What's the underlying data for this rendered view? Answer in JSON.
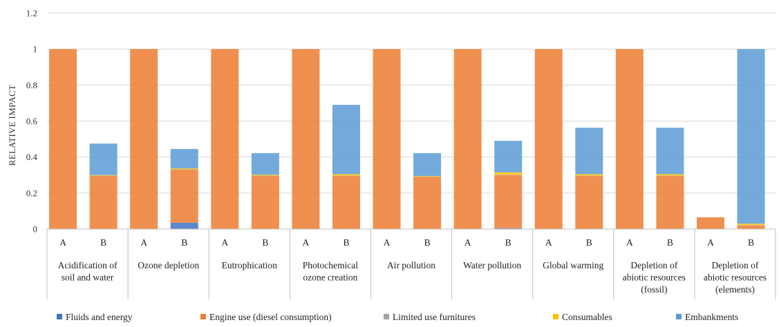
{
  "chart_data": {
    "type": "bar",
    "stacked": true,
    "title": "",
    "xlabel": "",
    "ylabel": "RELATIVE IMPACT",
    "ylim": [
      0,
      1.2
    ],
    "yticks": [
      "0",
      "0.2",
      "0.4",
      "0.6",
      "0.8",
      "1",
      "1.2"
    ],
    "grid": true,
    "legend_position": "bottom",
    "scenarios": [
      "A",
      "B"
    ],
    "categories": [
      [
        "Acidification of",
        "soil and water"
      ],
      [
        "Ozone depletion"
      ],
      [
        "Eutrophication"
      ],
      [
        "Photochemical",
        "ozone creation"
      ],
      [
        "Air pollution"
      ],
      [
        "Water pollution"
      ],
      [
        "Global warming"
      ],
      [
        "Depletion of",
        "abiotic resources",
        "(fossil)"
      ],
      [
        "Depletion of",
        "abiotic resources",
        "(elements)"
      ]
    ],
    "series": [
      {
        "name": "Fluids and energy",
        "color": "#4472C4",
        "values": [
          [
            0,
            0
          ],
          [
            0,
            0.035
          ],
          [
            0,
            0
          ],
          [
            0,
            0
          ],
          [
            0,
            0
          ],
          [
            0,
            0.005
          ],
          [
            0,
            0
          ],
          [
            0,
            0
          ],
          [
            0,
            0
          ]
        ]
      },
      {
        "name": "Engine use (diesel consumption)",
        "color": "#ED7D31",
        "values": [
          [
            1,
            0.295
          ],
          [
            1,
            0.295
          ],
          [
            1,
            0.295
          ],
          [
            1,
            0.295
          ],
          [
            1,
            0.29
          ],
          [
            1,
            0.295
          ],
          [
            1,
            0.295
          ],
          [
            1,
            0.295
          ],
          [
            0.065,
            0.02
          ]
        ]
      },
      {
        "name": "Limited use furnitures",
        "color": "#A5A5A5",
        "values": [
          [
            0,
            0.002
          ],
          [
            0,
            0.002
          ],
          [
            0,
            0.002
          ],
          [
            0,
            0.002
          ],
          [
            0,
            0.002
          ],
          [
            0,
            0.002
          ],
          [
            0,
            0.002
          ],
          [
            0,
            0.002
          ],
          [
            0,
            0.002
          ]
        ]
      },
      {
        "name": "Consumables",
        "color": "#FFC000",
        "values": [
          [
            0,
            0.003
          ],
          [
            0,
            0.005
          ],
          [
            0,
            0.005
          ],
          [
            0,
            0.008
          ],
          [
            0,
            0.003
          ],
          [
            0,
            0.013
          ],
          [
            0,
            0.008
          ],
          [
            0,
            0.008
          ],
          [
            0,
            0.008
          ]
        ]
      },
      {
        "name": "Embankments",
        "color": "#5B9BD5",
        "values": [
          [
            0,
            0.175
          ],
          [
            0,
            0.108
          ],
          [
            0,
            0.12
          ],
          [
            0,
            0.385
          ],
          [
            0,
            0.127
          ],
          [
            0,
            0.175
          ],
          [
            0,
            0.258
          ],
          [
            0,
            0.258
          ],
          [
            0,
            0.97
          ]
        ]
      }
    ]
  }
}
